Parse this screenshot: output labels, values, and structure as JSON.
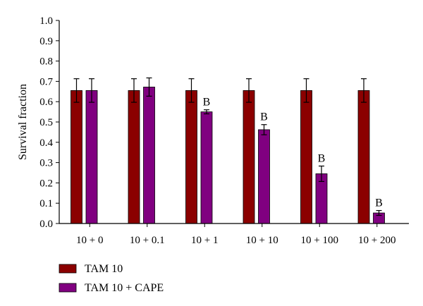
{
  "chart_data": {
    "type": "bar",
    "title": "",
    "xlabel": "",
    "ylabel": "Survival fraction",
    "ylim": [
      0,
      1.0
    ],
    "yticks": [
      "0.0",
      "0.1",
      "0.2",
      "0.3",
      "0.4",
      "0.5",
      "0.6",
      "0.7",
      "0.8",
      "0.9",
      "1.0"
    ],
    "grid": false,
    "legend_position": "bottom-left",
    "categories": [
      "10 + 0",
      "10 + 0.1",
      "10 + 1",
      "10 + 10",
      "10 + 100",
      "10 + 200"
    ],
    "series": [
      {
        "name": "TAM 10",
        "color": "#8b0000",
        "values": [
          0.655,
          0.655,
          0.655,
          0.655,
          0.655,
          0.655
        ],
        "errors": [
          0.058,
          0.058,
          0.058,
          0.058,
          0.058,
          0.058
        ],
        "annotations": [
          "",
          "",
          "",
          "",
          "",
          ""
        ]
      },
      {
        "name": "TAM 10 + CAPE",
        "color": "#800080",
        "values": [
          0.655,
          0.672,
          0.55,
          0.462,
          0.245,
          0.052
        ],
        "errors": [
          0.058,
          0.045,
          0.01,
          0.025,
          0.038,
          0.012
        ],
        "annotations": [
          "",
          "",
          "B",
          "B",
          "B",
          "B"
        ]
      }
    ]
  }
}
